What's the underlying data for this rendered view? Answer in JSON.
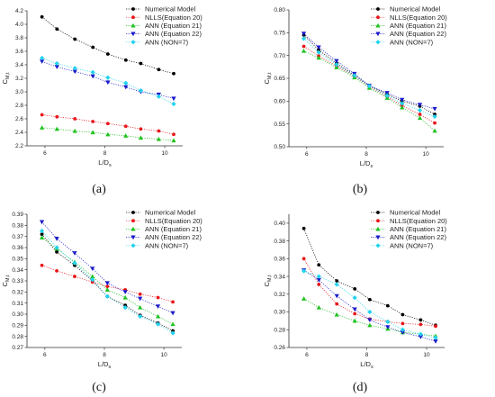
{
  "chart_data": [
    {
      "panel_label": "(a)",
      "type": "line",
      "xlabel": "L/D",
      "xlabel_sub": "s",
      "ylabel": "C",
      "ylabel_sub": "M,t",
      "xlim": [
        5.4,
        10.6
      ],
      "ylim": [
        2.2,
        4.2
      ],
      "xticks": [
        6,
        8,
        10
      ],
      "yticks": [
        2.2,
        2.4,
        2.6,
        2.8,
        3.0,
        3.2,
        3.4,
        3.6,
        3.8,
        4.0,
        4.2
      ],
      "ytick_labels": [
        "2.2",
        "2.4",
        "2.6",
        "2.8",
        "3.0",
        "3.2",
        "3.4",
        "3.6",
        "3.8",
        "4.0",
        "4.2"
      ],
      "series": [
        {
          "name": "Numerical Model",
          "color": "#000000",
          "marker": "circle",
          "x": [
            5.9,
            6.4,
            7.0,
            7.6,
            8.1,
            8.7,
            9.2,
            9.8,
            10.3
          ],
          "values": [
            4.11,
            3.93,
            3.78,
            3.66,
            3.56,
            3.47,
            3.42,
            3.33,
            3.27
          ]
        },
        {
          "name": "NLLS(Equation 20)",
          "color": "#e8161b",
          "marker": "circle",
          "x": [
            5.9,
            6.4,
            7.0,
            7.6,
            8.1,
            8.7,
            9.2,
            9.8,
            10.3
          ],
          "values": [
            2.66,
            2.63,
            2.6,
            2.56,
            2.53,
            2.49,
            2.45,
            2.42,
            2.37
          ]
        },
        {
          "name": "ANN (Equation 21)",
          "color": "#1fc21f",
          "marker": "triangle-up",
          "x": [
            5.9,
            6.4,
            7.0,
            7.6,
            8.1,
            8.7,
            9.2,
            9.8,
            10.3
          ],
          "values": [
            2.47,
            2.45,
            2.42,
            2.4,
            2.37,
            2.35,
            2.32,
            2.3,
            2.28
          ]
        },
        {
          "name": "ANN (Equation 22)",
          "color": "#1a1acb",
          "marker": "triangle-down",
          "x": [
            5.9,
            6.4,
            7.0,
            7.6,
            8.1,
            8.7,
            9.2,
            9.8,
            10.3
          ],
          "values": [
            3.45,
            3.37,
            3.3,
            3.23,
            3.14,
            3.07,
            3.0,
            2.96,
            2.9
          ]
        },
        {
          "name": "ANN (NON=7)",
          "color": "#22d3ee",
          "marker": "diamond",
          "x": [
            5.9,
            6.4,
            7.0,
            7.6,
            8.1,
            8.7,
            9.2,
            9.8,
            10.3
          ],
          "values": [
            3.5,
            3.42,
            3.35,
            3.29,
            3.21,
            3.13,
            3.02,
            2.93,
            2.82
          ]
        }
      ]
    },
    {
      "panel_label": "(b)",
      "type": "line",
      "xlabel": "L/D",
      "xlabel_sub": "s",
      "ylabel": "C",
      "ylabel_sub": "M,t",
      "xlim": [
        5.4,
        10.6
      ],
      "ylim": [
        0.5,
        0.8
      ],
      "xticks": [
        6,
        8,
        10
      ],
      "yticks": [
        0.5,
        0.55,
        0.6,
        0.65,
        0.7,
        0.75,
        0.8
      ],
      "ytick_labels": [
        "0.50",
        "0.55",
        "0.60",
        "0.65",
        "0.70",
        "0.75",
        "0.80"
      ],
      "series": [
        {
          "name": "Numerical Model",
          "color": "#000000",
          "marker": "circle",
          "x": [
            5.9,
            6.4,
            7.0,
            7.6,
            8.1,
            8.7,
            9.2,
            9.8,
            10.3
          ],
          "values": [
            0.745,
            0.712,
            0.683,
            0.657,
            0.634,
            0.615,
            0.6,
            0.589,
            0.571
          ]
        },
        {
          "name": "NLLS(Equation 20)",
          "color": "#e8161b",
          "marker": "circle",
          "x": [
            5.9,
            6.4,
            7.0,
            7.6,
            8.1,
            8.7,
            9.2,
            9.8,
            10.3
          ],
          "values": [
            0.72,
            0.699,
            0.677,
            0.655,
            0.632,
            0.61,
            0.59,
            0.571,
            0.552
          ]
        },
        {
          "name": "ANN (Equation 21)",
          "color": "#1fc21f",
          "marker": "triangle-up",
          "x": [
            5.9,
            6.4,
            7.0,
            7.6,
            8.1,
            8.7,
            9.2,
            9.8,
            10.3
          ],
          "values": [
            0.71,
            0.695,
            0.674,
            0.652,
            0.629,
            0.607,
            0.586,
            0.563,
            0.535
          ]
        },
        {
          "name": "ANN (Equation 22)",
          "color": "#1a1acb",
          "marker": "triangle-down",
          "x": [
            5.9,
            6.4,
            7.0,
            7.6,
            8.1,
            8.7,
            9.2,
            9.8,
            10.3
          ],
          "values": [
            0.748,
            0.718,
            0.688,
            0.66,
            0.634,
            0.618,
            0.603,
            0.592,
            0.583
          ]
        },
        {
          "name": "ANN (NON=7)",
          "color": "#22d3ee",
          "marker": "diamond",
          "x": [
            5.9,
            6.4,
            7.0,
            7.6,
            8.1,
            8.7,
            9.2,
            9.8,
            10.3
          ],
          "values": [
            0.737,
            0.707,
            0.68,
            0.656,
            0.633,
            0.612,
            0.595,
            0.58,
            0.566
          ]
        }
      ]
    },
    {
      "panel_label": "(c)",
      "type": "line",
      "xlabel": "L/D",
      "xlabel_sub": "s",
      "ylabel": "C",
      "ylabel_sub": "M,t",
      "xlim": [
        5.4,
        10.6
      ],
      "ylim": [
        0.27,
        0.39
      ],
      "xticks": [
        6,
        8,
        10
      ],
      "yticks": [
        0.27,
        0.28,
        0.29,
        0.3,
        0.31,
        0.32,
        0.33,
        0.34,
        0.35,
        0.36,
        0.37,
        0.38,
        0.39
      ],
      "ytick_labels": [
        "0.27",
        "0.28",
        "0.29",
        "0.30",
        "0.31",
        "0.32",
        "0.33",
        "0.34",
        "0.35",
        "0.36",
        "0.37",
        "0.38",
        "0.39"
      ],
      "series": [
        {
          "name": "Numerical Model",
          "color": "#000000",
          "marker": "circle",
          "x": [
            5.9,
            6.4,
            7.0,
            7.6,
            8.1,
            8.7,
            9.2,
            9.8,
            10.3
          ],
          "values": [
            0.372,
            0.356,
            0.344,
            0.33,
            0.316,
            0.308,
            0.299,
            0.292,
            0.285
          ]
        },
        {
          "name": "NLLS(Equation 20)",
          "color": "#e8161b",
          "marker": "circle",
          "x": [
            5.9,
            6.4,
            7.0,
            7.6,
            8.1,
            8.7,
            9.2,
            9.8,
            10.3
          ],
          "values": [
            0.344,
            0.339,
            0.334,
            0.329,
            0.325,
            0.322,
            0.318,
            0.315,
            0.311
          ]
        },
        {
          "name": "ANN (Equation 21)",
          "color": "#1fc21f",
          "marker": "triangle-up",
          "x": [
            5.9,
            6.4,
            7.0,
            7.6,
            8.1,
            8.7,
            9.2,
            9.8,
            10.3
          ],
          "values": [
            0.369,
            0.359,
            0.347,
            0.334,
            0.322,
            0.315,
            0.306,
            0.298,
            0.291
          ]
        },
        {
          "name": "ANN (Equation 22)",
          "color": "#1a1acb",
          "marker": "triangle-down",
          "x": [
            5.9,
            6.4,
            7.0,
            7.6,
            8.1,
            8.7,
            9.2,
            9.8,
            10.3
          ],
          "values": [
            0.383,
            0.368,
            0.355,
            0.341,
            0.328,
            0.32,
            0.314,
            0.307,
            0.301
          ]
        },
        {
          "name": "ANN (NON=7)",
          "color": "#22d3ee",
          "marker": "diamond",
          "x": [
            5.9,
            6.4,
            7.0,
            7.6,
            8.1,
            8.7,
            9.2,
            9.8,
            10.3
          ],
          "values": [
            0.375,
            0.36,
            0.346,
            0.331,
            0.316,
            0.306,
            0.298,
            0.291,
            0.283
          ]
        }
      ]
    },
    {
      "panel_label": "(d)",
      "type": "line",
      "xlabel": "L/D",
      "xlabel_sub": "s",
      "ylabel": "C",
      "ylabel_sub": "M,t",
      "xlim": [
        5.4,
        10.6
      ],
      "ylim": [
        0.26,
        0.41
      ],
      "xticks": [
        6,
        8,
        10
      ],
      "yticks": [
        0.26,
        0.28,
        0.3,
        0.32,
        0.34,
        0.36,
        0.38,
        0.4
      ],
      "ytick_labels": [
        "0.26",
        "0.28",
        "0.30",
        "0.32",
        "0.34",
        "0.36",
        "0.38",
        "0.40"
      ],
      "series": [
        {
          "name": "Numerical Model",
          "color": "#000000",
          "marker": "circle",
          "x": [
            5.9,
            6.4,
            7.0,
            7.6,
            8.1,
            8.7,
            9.2,
            9.8,
            10.3
          ],
          "values": [
            0.394,
            0.353,
            0.335,
            0.326,
            0.314,
            0.307,
            0.297,
            0.291,
            0.285
          ]
        },
        {
          "name": "NLLS(Equation 20)",
          "color": "#e8161b",
          "marker": "circle",
          "x": [
            5.9,
            6.4,
            7.0,
            7.6,
            8.1,
            8.7,
            9.2,
            9.8,
            10.3
          ],
          "values": [
            0.36,
            0.331,
            0.309,
            0.298,
            0.292,
            0.289,
            0.287,
            0.286,
            0.284
          ]
        },
        {
          "name": "ANN (Equation 21)",
          "color": "#1fc21f",
          "marker": "triangle-up",
          "x": [
            5.9,
            6.4,
            7.0,
            7.6,
            8.1,
            8.7,
            9.2,
            9.8,
            10.3
          ],
          "values": [
            0.315,
            0.305,
            0.297,
            0.29,
            0.285,
            0.281,
            0.277,
            0.275,
            0.273
          ]
        },
        {
          "name": "ANN (Equation 22)",
          "color": "#1a1acb",
          "marker": "triangle-down",
          "x": [
            5.9,
            6.4,
            7.0,
            7.6,
            8.1,
            8.7,
            9.2,
            9.8,
            10.3
          ],
          "values": [
            0.347,
            0.336,
            0.318,
            0.303,
            0.291,
            0.283,
            0.277,
            0.272,
            0.267
          ]
        },
        {
          "name": "ANN (NON=7)",
          "color": "#22d3ee",
          "marker": "diamond",
          "x": [
            5.9,
            6.4,
            7.0,
            7.6,
            8.1,
            8.7,
            9.2,
            9.8,
            10.3
          ],
          "values": [
            0.346,
            0.34,
            0.331,
            0.316,
            0.3,
            0.289,
            0.28,
            0.275,
            0.271
          ]
        }
      ]
    }
  ]
}
